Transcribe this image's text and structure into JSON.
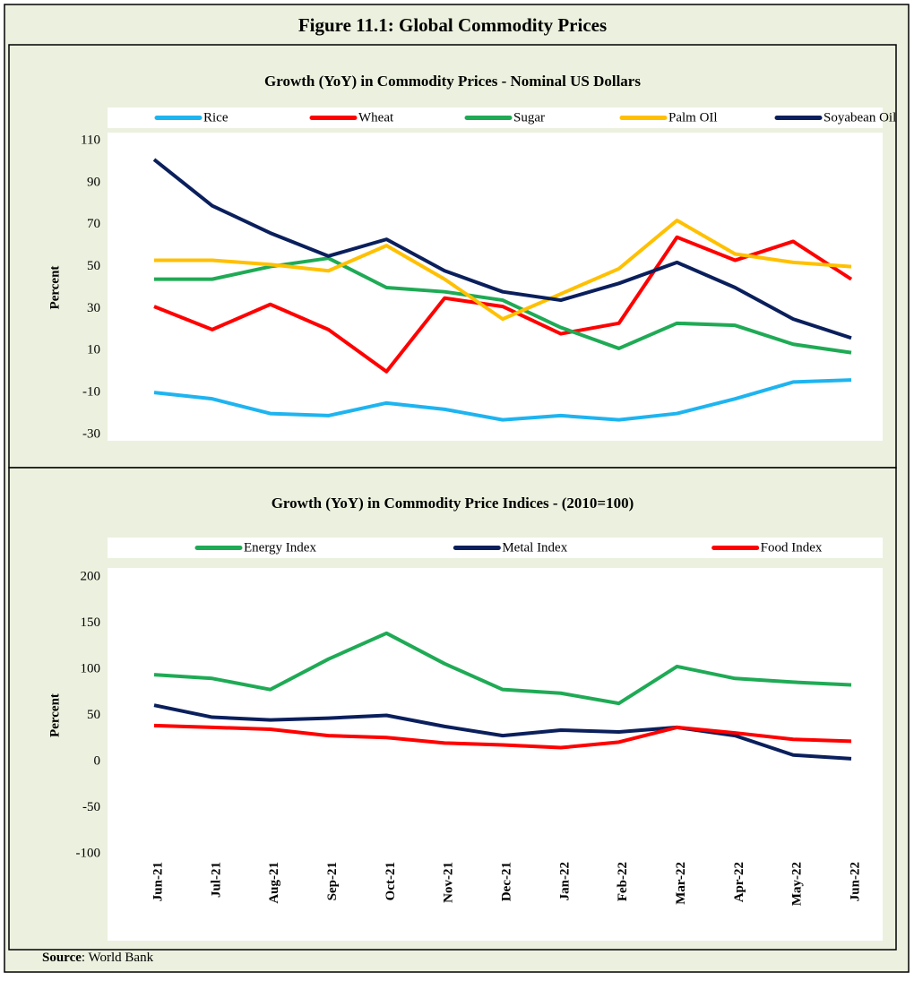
{
  "title": "Figure 11.1: Global Commodity Prices",
  "source_label": "Source",
  "source_text": ": World Bank",
  "chart_data": [
    {
      "type": "line",
      "title": "Growth (YoY) in Commodity Prices - Nominal US Dollars",
      "ylabel": "Percent",
      "ylim": [
        -30,
        110
      ],
      "yticks": [
        -30,
        -10,
        10,
        30,
        50,
        70,
        90,
        110
      ],
      "legend": "top",
      "series": [
        {
          "name": "Rice",
          "color": "#1eb4f0",
          "values": [
            -10,
            -13,
            -20,
            -21,
            -15,
            -18,
            -23,
            -21,
            -23,
            -20,
            -13,
            -5,
            -4
          ]
        },
        {
          "name": "Wheat",
          "color": "#ff0000",
          "values": [
            31,
            20,
            32,
            20,
            0,
            35,
            31,
            18,
            23,
            64,
            53,
            62,
            44
          ]
        },
        {
          "name": "Sugar",
          "color": "#1faa55",
          "values": [
            44,
            44,
            50,
            54,
            40,
            38,
            34,
            21,
            11,
            23,
            22,
            13,
            9
          ]
        },
        {
          "name": "Palm OIl",
          "color": "#ffc000",
          "values": [
            53,
            53,
            51,
            48,
            60,
            44,
            25,
            37,
            49,
            72,
            56,
            52,
            50
          ]
        },
        {
          "name": "Soyabean Oil",
          "color": "#0a1f5c",
          "values": [
            101,
            79,
            66,
            55,
            63,
            48,
            38,
            34,
            42,
            52,
            40,
            25,
            16
          ]
        }
      ]
    },
    {
      "type": "line",
      "title": "Growth (YoY) in Commodity Price Indices -   (2010=100)",
      "ylabel": "Percent",
      "categories": [
        "Jun-21",
        "Jul-21",
        "Aug-21",
        "Sep-21",
        "Oct-21",
        "Nov-21",
        "Dec-21",
        "Jan-22",
        "Feb-22",
        "Mar-22",
        "Apr-22",
        "May-22",
        "Jun-22"
      ],
      "ylim": [
        -100,
        200
      ],
      "yticks": [
        -100,
        -50,
        0,
        50,
        100,
        150,
        200
      ],
      "legend": "top",
      "series": [
        {
          "name": "Energy Index",
          "color": "#1faa55",
          "values": [
            94,
            90,
            78,
            111,
            139,
            106,
            78,
            74,
            63,
            103,
            90,
            86,
            83
          ]
        },
        {
          "name": "Metal Index",
          "color": "#0a1f5c",
          "values": [
            61,
            48,
            45,
            47,
            50,
            38,
            28,
            34,
            32,
            37,
            28,
            7,
            3
          ]
        },
        {
          "name": "Food Index",
          "color": "#ff0000",
          "values": [
            39,
            37,
            35,
            28,
            26,
            20,
            18,
            15,
            21,
            37,
            31,
            24,
            22
          ]
        }
      ]
    }
  ]
}
